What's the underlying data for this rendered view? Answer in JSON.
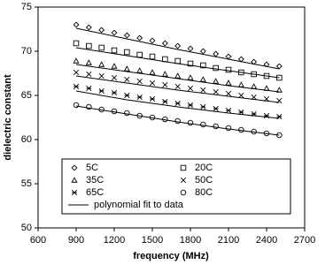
{
  "chart_data": {
    "type": "scatter",
    "xlabel": "frequency (MHz)",
    "ylabel": "dielectric constant",
    "xlim": [
      600,
      2700
    ],
    "xticks": [
      600,
      900,
      1200,
      1500,
      1800,
      2100,
      2400,
      2700
    ],
    "ylim": [
      50,
      75
    ],
    "yticks": [
      50,
      55,
      60,
      65,
      70,
      75
    ],
    "x": [
      900,
      1000,
      1100,
      1200,
      1300,
      1400,
      1500,
      1600,
      1700,
      1800,
      1900,
      2000,
      2100,
      2200,
      2300,
      2400,
      2500
    ],
    "series": [
      {
        "name": "5C",
        "marker": "diamond",
        "color": "#000000",
        "values": [
          73.0,
          72.7,
          72.4,
          72.1,
          71.8,
          71.5,
          71.2,
          70.9,
          70.6,
          70.3,
          70.0,
          69.7,
          69.4,
          69.1,
          68.8,
          68.5,
          68.3
        ]
      },
      {
        "name": "20C",
        "marker": "square",
        "color": "#000000",
        "values": [
          70.9,
          70.6,
          70.4,
          70.1,
          69.9,
          69.6,
          69.4,
          69.1,
          68.9,
          68.6,
          68.4,
          68.1,
          67.9,
          67.6,
          67.4,
          67.2,
          67.0
        ]
      },
      {
        "name": "35C",
        "marker": "triangle",
        "color": "#000000",
        "values": [
          68.9,
          68.7,
          68.5,
          68.3,
          68.0,
          67.8,
          67.6,
          67.4,
          67.2,
          67.0,
          66.8,
          66.6,
          66.4,
          66.2,
          66.0,
          65.8,
          65.6
        ]
      },
      {
        "name": "50C",
        "marker": "cross",
        "color": "#000000",
        "values": [
          67.6,
          67.4,
          67.2,
          67.0,
          66.8,
          66.6,
          66.4,
          66.2,
          66.0,
          65.8,
          65.6,
          65.4,
          65.2,
          65.0,
          64.8,
          64.6,
          64.4
        ]
      },
      {
        "name": "65C",
        "marker": "asterisk",
        "color": "#000000",
        "values": [
          66.0,
          65.8,
          65.5,
          65.3,
          65.0,
          64.8,
          64.6,
          64.3,
          64.1,
          63.9,
          63.7,
          63.5,
          63.3,
          63.1,
          62.9,
          62.7,
          62.6
        ]
      },
      {
        "name": "80C",
        "marker": "circle",
        "color": "#000000",
        "values": [
          63.9,
          63.7,
          63.4,
          63.2,
          63.0,
          62.7,
          62.5,
          62.3,
          62.1,
          61.9,
          61.7,
          61.5,
          61.3,
          61.1,
          60.9,
          60.7,
          60.5
        ]
      }
    ],
    "fit": {
      "name": "polynomial fit to data",
      "color": "#000000",
      "x": [
        900,
        1300,
        1700,
        2100,
        2500
      ],
      "values": [
        [
          72.6,
          71.4,
          70.2,
          69.1,
          68.0
        ],
        [
          70.4,
          69.5,
          68.6,
          67.8,
          67.0
        ],
        [
          68.5,
          67.7,
          66.9,
          66.1,
          65.4
        ],
        [
          67.2,
          66.4,
          65.6,
          64.9,
          64.2
        ],
        [
          65.5,
          64.5,
          63.7,
          63.0,
          62.4
        ],
        [
          63.8,
          62.9,
          62.0,
          61.2,
          60.5
        ]
      ]
    }
  }
}
